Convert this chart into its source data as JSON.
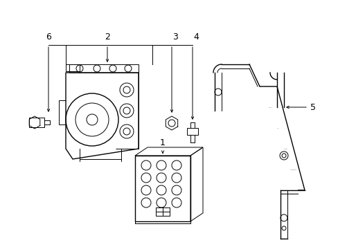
{
  "background_color": "#ffffff",
  "line_color": "#000000",
  "gray_color": "#aaaaaa",
  "figsize": [
    4.89,
    3.6
  ],
  "dpi": 100,
  "label_fontsize": 9
}
